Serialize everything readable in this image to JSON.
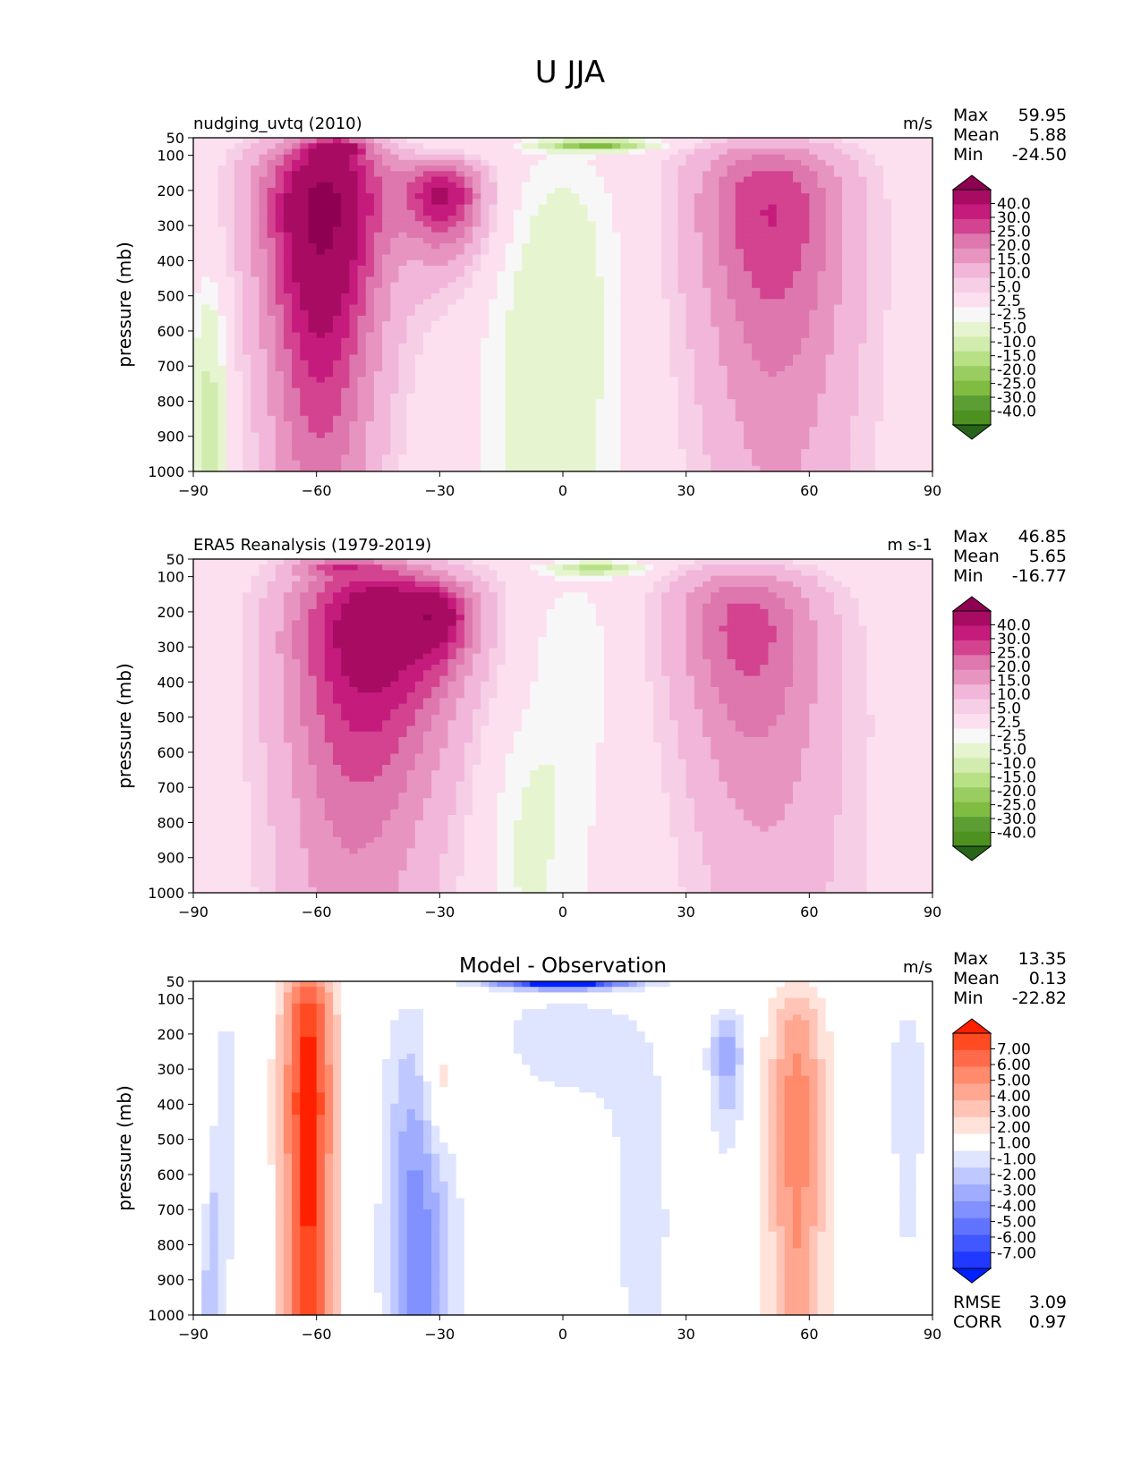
{
  "figure_title": "U JJA",
  "chart_data": [
    {
      "type": "heatmap",
      "title": "nudging_uvtq (2010)",
      "units": "m/s",
      "xlabel": "",
      "ylabel": "pressure (mb)",
      "x_ticks": [
        "−90",
        "−60",
        "−30",
        "0",
        "30",
        "60",
        "90"
      ],
      "y_ticks": [
        "50",
        "100",
        "200",
        "300",
        "400",
        "500",
        "600",
        "700",
        "800",
        "900",
        "1000"
      ],
      "xlim": [
        -90,
        90
      ],
      "ylim": [
        1000,
        50
      ],
      "stats": [
        {
          "label": "Max",
          "value": "59.95"
        },
        {
          "label": "Mean",
          "value": "5.88"
        },
        {
          "label": "Min",
          "value": "-24.50"
        }
      ],
      "colorbar": {
        "levels": [
          "40.0",
          "30.0",
          "25.0",
          "20.0",
          "15.0",
          "10.0",
          "5.0",
          "2.5",
          "-2.5",
          "-5.0",
          "-10.0",
          "-15.0",
          "-20.0",
          "-25.0",
          "-30.0",
          "-40.0"
        ],
        "colors": [
          "#8e0152",
          "#a70c62",
          "#c51b7d",
          "#d3438f",
          "#de77ae",
          "#e795c0",
          "#f1b6da",
          "#f6cfe6",
          "#fde0ef",
          "#f7f7f7",
          "#e6f5d0",
          "#d2ecb0",
          "#b8e186",
          "#9acd61",
          "#7fbc41",
          "#5d9e34",
          "#4d9221",
          "#276419"
        ]
      },
      "features": [
        {
          "lat": -58,
          "plev": 220,
          "value": 38.0,
          "sx": 11,
          "sy": 2.6
        },
        {
          "lat": -55,
          "plev": 75,
          "value": 22.0,
          "sx": 5,
          "sy": 0.7
        },
        {
          "lat": -29,
          "plev": 215,
          "value": 30.0,
          "sx": 7,
          "sy": 1.2
        },
        {
          "lat": -60,
          "plev": 600,
          "value": 10.0,
          "sx": 8,
          "sy": 2.2
        },
        {
          "lat": 50,
          "plev": 230,
          "value": 22.0,
          "sx": 13,
          "sy": 2.5
        },
        {
          "lat": 55,
          "plev": 650,
          "value": 6.0,
          "sx": 14,
          "sy": 2.6
        },
        {
          "lat": 8,
          "plev": 70,
          "value": -28.0,
          "sx": 9,
          "sy": 0.45
        },
        {
          "lat": 0,
          "plev": 350,
          "value": -6.0,
          "sx": 10,
          "sy": 2.5
        },
        {
          "lat": -5,
          "plev": 850,
          "value": -5.0,
          "sx": 12,
          "sy": 1.6
        },
        {
          "lat": -86,
          "plev": 850,
          "value": -12.0,
          "sx": 3,
          "sy": 1.2
        }
      ]
    },
    {
      "type": "heatmap",
      "title": "ERA5 Reanalysis (1979-2019)",
      "units": "m s-1",
      "xlabel": "",
      "ylabel": "pressure (mb)",
      "x_ticks": [
        "−90",
        "−60",
        "−30",
        "0",
        "30",
        "60",
        "90"
      ],
      "y_ticks": [
        "50",
        "100",
        "200",
        "300",
        "400",
        "500",
        "600",
        "700",
        "800",
        "900",
        "1000"
      ],
      "xlim": [
        -90,
        90
      ],
      "ylim": [
        1000,
        50
      ],
      "stats": [
        {
          "label": "Max",
          "value": "46.85"
        },
        {
          "label": "Mean",
          "value": "5.65"
        },
        {
          "label": "Min",
          "value": "-16.77"
        }
      ],
      "colorbar": {
        "levels": [
          "40.0",
          "30.0",
          "25.0",
          "20.0",
          "15.0",
          "10.0",
          "5.0",
          "2.5",
          "-2.5",
          "-5.0",
          "-10.0",
          "-15.0",
          "-20.0",
          "-25.0",
          "-30.0",
          "-40.0"
        ],
        "colors": [
          "#8e0152",
          "#a70c62",
          "#c51b7d",
          "#d3438f",
          "#de77ae",
          "#e795c0",
          "#f1b6da",
          "#f6cfe6",
          "#fde0ef",
          "#f7f7f7",
          "#e6f5d0",
          "#d2ecb0",
          "#b8e186",
          "#9acd61",
          "#7fbc41",
          "#5d9e34",
          "#4d9221",
          "#276419"
        ]
      },
      "features": [
        {
          "lat": -45,
          "plev": 220,
          "value": 34.0,
          "sx": 14,
          "sy": 2.4
        },
        {
          "lat": -55,
          "plev": 70,
          "value": 14.0,
          "sx": 8,
          "sy": 0.6
        },
        {
          "lat": -30,
          "plev": 215,
          "value": 18.0,
          "sx": 6,
          "sy": 1.0
        },
        {
          "lat": -55,
          "plev": 650,
          "value": 8.0,
          "sx": 12,
          "sy": 2.5
        },
        {
          "lat": 44,
          "plev": 230,
          "value": 20.0,
          "sx": 12,
          "sy": 2.2
        },
        {
          "lat": 55,
          "plev": 650,
          "value": 6.0,
          "sx": 14,
          "sy": 2.6
        },
        {
          "lat": 8,
          "plev": 75,
          "value": -16.0,
          "sx": 8,
          "sy": 0.5
        },
        {
          "lat": 2,
          "plev": 350,
          "value": -4.5,
          "sx": 8,
          "sy": 2.5
        },
        {
          "lat": -10,
          "plev": 880,
          "value": -5.0,
          "sx": 7,
          "sy": 1.2
        }
      ]
    },
    {
      "type": "heatmap",
      "title": "Model - Observation",
      "units": "m/s",
      "xlabel": "",
      "ylabel": "pressure (mb)",
      "x_ticks": [
        "−90",
        "−60",
        "−30",
        "0",
        "30",
        "60",
        "90"
      ],
      "y_ticks": [
        "50",
        "100",
        "200",
        "300",
        "400",
        "500",
        "600",
        "700",
        "800",
        "900",
        "1000"
      ],
      "xlim": [
        -90,
        90
      ],
      "ylim": [
        1000,
        50
      ],
      "stats": [
        {
          "label": "Max",
          "value": "13.35"
        },
        {
          "label": "Mean",
          "value": "0.13"
        },
        {
          "label": "Min",
          "value": "-22.82"
        }
      ],
      "metrics": [
        {
          "label": "RMSE",
          "value": "3.09"
        },
        {
          "label": "CORR",
          "value": "0.97"
        }
      ],
      "colorbar": {
        "levels": [
          "7.00",
          "6.00",
          "5.00",
          "4.00",
          "3.00",
          "2.00",
          "1.00",
          "-1.00",
          "-2.00",
          "-3.00",
          "-4.00",
          "-5.00",
          "-6.00",
          "-7.00"
        ],
        "colors": [
          "#ff2000",
          "#ff4a22",
          "#ff6b4a",
          "#ff8a6c",
          "#ffa791",
          "#ffc4b6",
          "#ffe3da",
          "#ffffff",
          "#dfe4ff",
          "#bfc8ff",
          "#a0adff",
          "#8191ff",
          "#6174ff",
          "#4157ff",
          "#2038ff",
          "#0021ff"
        ]
      },
      "features": [
        {
          "lat": -62,
          "plev": 400,
          "value": 7.5,
          "sx": 4.5,
          "sy": 6.0
        },
        {
          "lat": -30,
          "plev": 330,
          "value": 2.2,
          "sx": 2.5,
          "sy": 0.9
        },
        {
          "lat": 57,
          "plev": 450,
          "value": 4.5,
          "sx": 5,
          "sy": 3.5
        },
        {
          "lat": -87,
          "plev": 700,
          "value": 1.8,
          "sx": 2,
          "sy": 0.8
        },
        {
          "lat": 0,
          "plev": 60,
          "value": -9.0,
          "sx": 12,
          "sy": 0.4
        },
        {
          "lat": 0,
          "plev": 200,
          "value": -1.6,
          "sx": 13,
          "sy": 1.6
        },
        {
          "lat": -37,
          "plev": 600,
          "value": -2.6,
          "sx": 5,
          "sy": 3.2
        },
        {
          "lat": -33,
          "plev": 900,
          "value": -2.5,
          "sx": 6,
          "sy": 1.4
        },
        {
          "lat": 40,
          "plev": 260,
          "value": -3.5,
          "sx": 3,
          "sy": 1.3
        },
        {
          "lat": 84,
          "plev": 350,
          "value": -2.0,
          "sx": 3,
          "sy": 2.0
        },
        {
          "lat": -82,
          "plev": 400,
          "value": -1.4,
          "sx": 2.5,
          "sy": 3.0
        },
        {
          "lat": 20,
          "plev": 800,
          "value": -1.2,
          "sx": 8,
          "sy": 3.0
        },
        {
          "lat": -86,
          "plev": 850,
          "value": -4.0,
          "sx": 1.5,
          "sy": 1.0
        }
      ]
    }
  ]
}
